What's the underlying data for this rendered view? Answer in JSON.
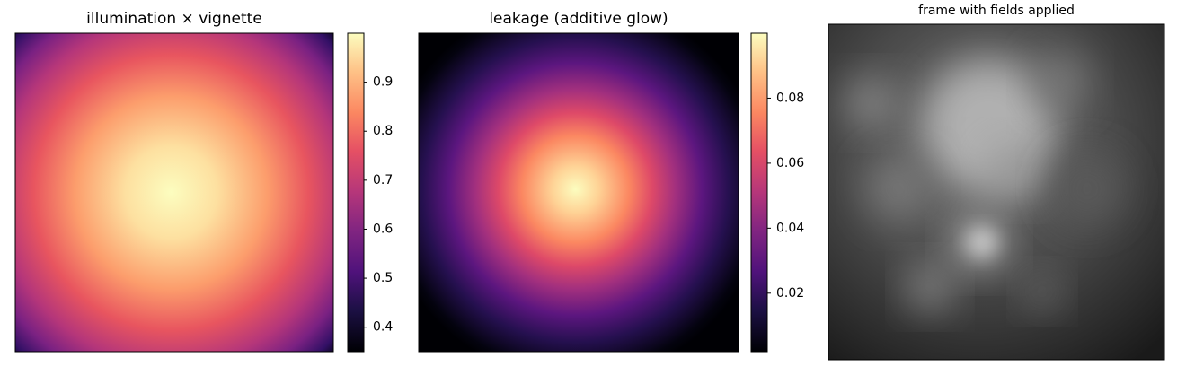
{
  "chart_data": [
    {
      "type": "heatmap",
      "title": "illumination × vignette",
      "colormap": "magma",
      "clim": [
        0.35,
        1.0
      ],
      "cticks": [
        0.4,
        0.5,
        0.6,
        0.7,
        0.8,
        0.9
      ]
    },
    {
      "type": "heatmap",
      "title": "leakage (additive glow)",
      "colormap": "magma",
      "clim": [
        0.002,
        0.1
      ],
      "cticks": [
        0.02,
        0.04,
        0.06,
        0.08
      ]
    },
    {
      "type": "image",
      "title": "frame with fields applied",
      "colormap": "gray"
    }
  ]
}
